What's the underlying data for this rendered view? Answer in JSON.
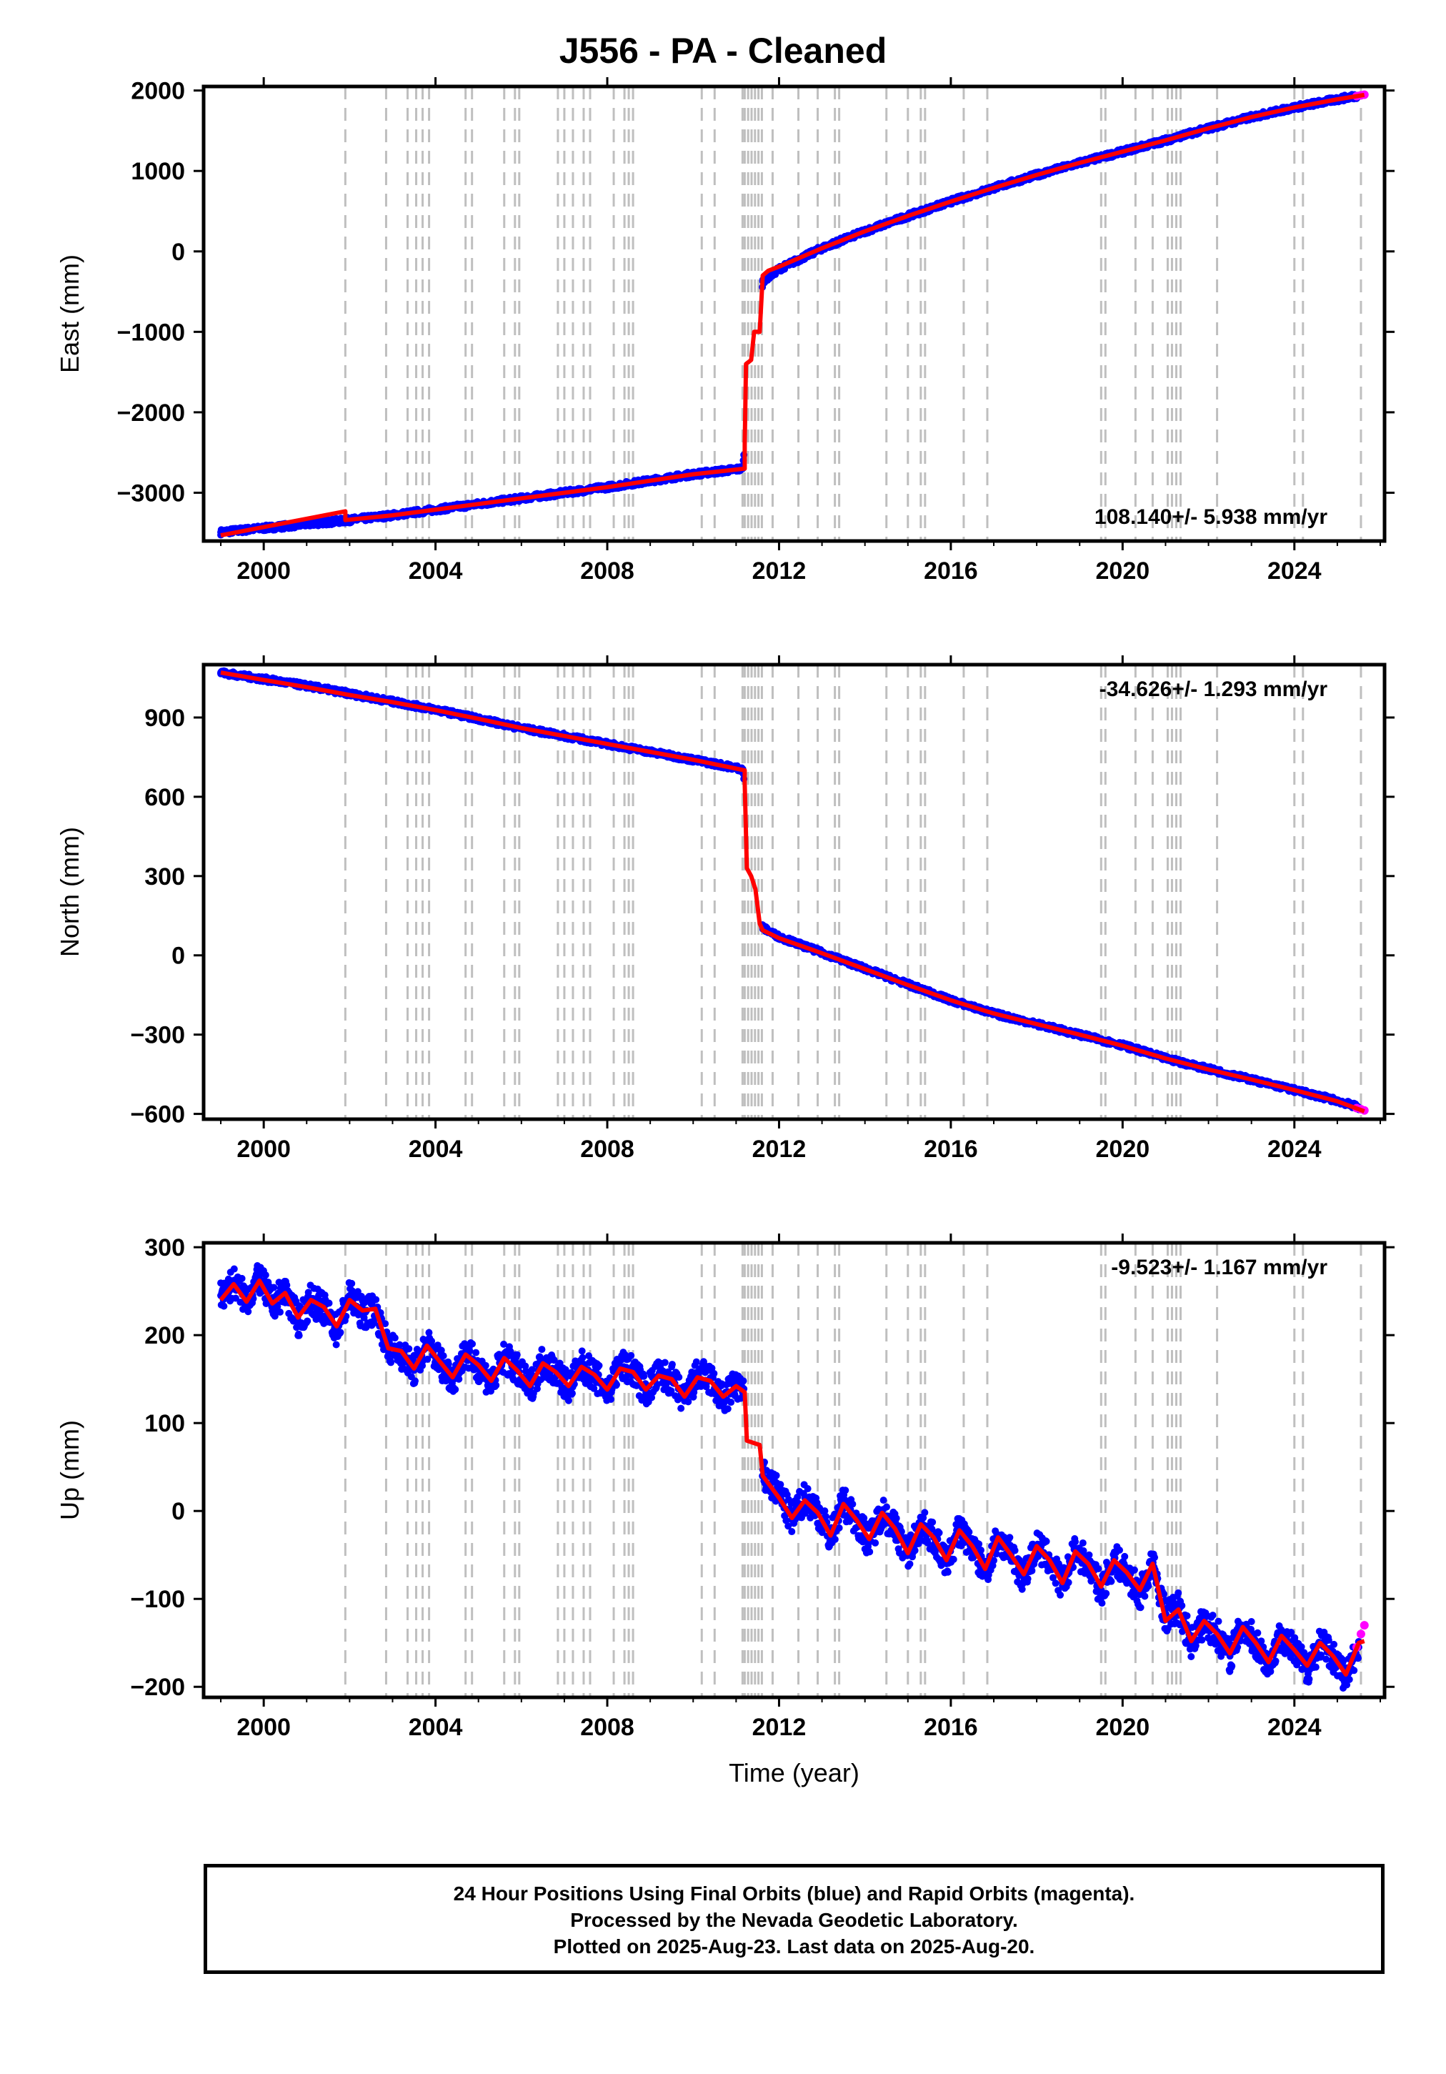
{
  "title": "J556  - PA - Cleaned",
  "caption": {
    "line1": "24 Hour Positions Using Final Orbits (blue) and Rapid Orbits (magenta).",
    "line2": "Processed by the Nevada Geodetic Laboratory.",
    "line3": "Plotted on 2025-Aug-23. Last data on 2025-Aug-20."
  },
  "colors": {
    "final_orbits": "#0000ff",
    "rapid_orbits": "#ff00ff",
    "model_fit": "#ff0000",
    "event_lines": "#bfbfbf",
    "axes": "#000000"
  },
  "chart_data": [
    {
      "type": "scatter",
      "id": "east",
      "title": "",
      "xlabel": "",
      "ylabel": "East (mm)",
      "xlim": [
        1998.6,
        2026.1
      ],
      "ylim": [
        -3600,
        2050
      ],
      "xticks": [
        2000,
        2004,
        2008,
        2012,
        2016,
        2020,
        2024
      ],
      "yticks": [
        -3000,
        -2000,
        -1000,
        0,
        1000,
        2000
      ],
      "ytick_labels": [
        "−3000",
        "−2000",
        "−1000",
        "0",
        "1000",
        "2000"
      ],
      "rate_label": "108.140+/- 5.938 mm/yr",
      "rate_label_position": "bottom-right",
      "grid": false,
      "series": [
        {
          "kind": "final_orbits",
          "x": [
            1999.0,
            2000.0,
            2001.0,
            2002.0,
            2003.0,
            2004.0,
            2005.0,
            2006.0,
            2007.0,
            2008.0,
            2009.0,
            2010.0,
            2011.15,
            2011.62,
            2012.0,
            2013.0,
            2014.0,
            2015.0,
            2016.0,
            2017.0,
            2018.0,
            2019.0,
            2020.0,
            2021.0,
            2022.0,
            2023.0,
            2024.0,
            2025.0,
            2025.5
          ],
          "y": [
            -3490,
            -3440,
            -3390,
            -3340,
            -3280,
            -3210,
            -3140,
            -3070,
            -3000,
            -2930,
            -2850,
            -2770,
            -2700,
            -370,
            -220,
            40,
            250,
            440,
            620,
            790,
            950,
            1100,
            1240,
            1380,
            1530,
            1670,
            1790,
            1890,
            1940
          ]
        },
        {
          "kind": "rapid_orbits",
          "x": [
            2025.45,
            2025.55,
            2025.63
          ],
          "y": [
            1930,
            1940,
            1948
          ]
        },
        {
          "kind": "model_fit",
          "x": [
            1999.0,
            2001.9,
            2001.9,
            2003.0,
            2004.0,
            2005.0,
            2006.0,
            2007.0,
            2008.0,
            2009.0,
            2010.0,
            2011.2,
            2011.2,
            2011.23,
            2011.35,
            2011.42,
            2011.55,
            2011.62,
            2011.75,
            2012.0,
            2013.0,
            2014.0,
            2015.0,
            2016.0,
            2017.0,
            2018.0,
            2019.0,
            2020.0,
            2021.0,
            2022.0,
            2023.0,
            2024.0,
            2025.0,
            2025.63
          ],
          "y": [
            -3530,
            -3230,
            -3340,
            -3280,
            -3210,
            -3140,
            -3070,
            -3000,
            -2930,
            -2850,
            -2770,
            -2700,
            -2400,
            -1400,
            -1350,
            -1000,
            -1000,
            -300,
            -240,
            -190,
            40,
            250,
            440,
            620,
            790,
            950,
            1100,
            1240,
            1380,
            1530,
            1670,
            1790,
            1890,
            1945
          ]
        }
      ]
    },
    {
      "type": "scatter",
      "id": "north",
      "title": "",
      "xlabel": "",
      "ylabel": "North (mm)",
      "xlim": [
        1998.6,
        2026.1
      ],
      "ylim": [
        -620,
        1100
      ],
      "xticks": [
        2000,
        2004,
        2008,
        2012,
        2016,
        2020,
        2024
      ],
      "yticks": [
        -600,
        -300,
        0,
        300,
        600,
        900
      ],
      "ytick_labels": [
        "−600",
        "−300",
        "0",
        "300",
        "600",
        "900"
      ],
      "rate_label": "-34.626+/- 1.293 mm/yr",
      "rate_label_position": "top-right",
      "grid": false,
      "series": [
        {
          "kind": "final_orbits",
          "x": [
            1999.0,
            2000.0,
            2001.0,
            2002.0,
            2003.0,
            2004.0,
            2005.0,
            2006.0,
            2007.0,
            2008.0,
            2009.0,
            2010.0,
            2011.15,
            2011.62,
            2012.0,
            2013.0,
            2014.0,
            2015.0,
            2016.0,
            2017.0,
            2018.0,
            2019.0,
            2020.0,
            2021.0,
            2022.0,
            2023.0,
            2024.0,
            2025.0,
            2025.5
          ],
          "y": [
            1070,
            1045,
            1020,
            990,
            960,
            930,
            895,
            860,
            830,
            800,
            770,
            740,
            705,
            105,
            70,
            10,
            -50,
            -110,
            -170,
            -220,
            -260,
            -300,
            -340,
            -390,
            -430,
            -470,
            -510,
            -550,
            -575
          ]
        },
        {
          "kind": "rapid_orbits",
          "x": [
            2025.45,
            2025.55,
            2025.63
          ],
          "y": [
            -578,
            -582,
            -587
          ]
        },
        {
          "kind": "model_fit",
          "x": [
            1999.0,
            2000.0,
            2001.0,
            2002.0,
            2003.0,
            2004.0,
            2005.0,
            2006.0,
            2007.0,
            2008.0,
            2009.0,
            2010.0,
            2011.2,
            2011.2,
            2011.25,
            2011.35,
            2011.45,
            2011.55,
            2011.62,
            2012.0,
            2013.0,
            2014.0,
            2015.0,
            2016.0,
            2017.0,
            2018.0,
            2019.0,
            2020.0,
            2021.0,
            2022.0,
            2023.0,
            2024.0,
            2025.0,
            2025.63
          ],
          "y": [
            1070,
            1042,
            1015,
            985,
            958,
            928,
            895,
            860,
            830,
            800,
            770,
            740,
            700,
            650,
            330,
            300,
            250,
            120,
            95,
            65,
            8,
            -52,
            -112,
            -170,
            -220,
            -260,
            -300,
            -342,
            -390,
            -432,
            -470,
            -510,
            -552,
            -590
          ]
        }
      ]
    },
    {
      "type": "scatter",
      "id": "up",
      "title": "",
      "xlabel": "Time (year)",
      "ylabel": "Up (mm)",
      "xlim": [
        1998.6,
        2026.1
      ],
      "ylim": [
        -212,
        305
      ],
      "xticks": [
        2000,
        2004,
        2008,
        2012,
        2016,
        2020,
        2024
      ],
      "yticks": [
        -200,
        -100,
        0,
        100,
        200,
        300
      ],
      "ytick_labels": [
        "−200",
        "−100",
        "0",
        "100",
        "200",
        "300"
      ],
      "rate_label": "-9.523+/- 1.167 mm/yr",
      "rate_label_position": "top-right",
      "grid": false,
      "series": [
        {
          "kind": "final_orbits",
          "x": [
            1999.0,
            1999.3,
            1999.6,
            1999.9,
            2000.2,
            2000.5,
            2000.8,
            2001.1,
            2001.4,
            2001.7,
            2002.0,
            2002.3,
            2002.6,
            2002.9,
            2003.2,
            2003.5,
            2003.8,
            2004.1,
            2004.4,
            2004.7,
            2005.0,
            2005.3,
            2005.6,
            2005.9,
            2006.2,
            2006.5,
            2006.8,
            2007.1,
            2007.4,
            2007.7,
            2008.0,
            2008.3,
            2008.6,
            2008.9,
            2009.2,
            2009.5,
            2009.8,
            2010.1,
            2010.4,
            2010.7,
            2011.0,
            2011.15,
            2011.62,
            2012.0,
            2012.3,
            2012.6,
            2012.9,
            2013.2,
            2013.5,
            2013.8,
            2014.1,
            2014.4,
            2014.7,
            2015.0,
            2015.3,
            2015.6,
            2015.9,
            2016.2,
            2016.5,
            2016.8,
            2017.1,
            2017.4,
            2017.7,
            2018.0,
            2018.3,
            2018.6,
            2018.9,
            2019.2,
            2019.5,
            2019.8,
            2020.1,
            2020.4,
            2020.7,
            2021.0,
            2021.3,
            2021.6,
            2021.9,
            2022.2,
            2022.5,
            2022.8,
            2023.1,
            2023.4,
            2023.7,
            2024.0,
            2024.3,
            2024.6,
            2024.9,
            2025.2,
            2025.5
          ],
          "y": [
            245,
            260,
            240,
            265,
            235,
            250,
            215,
            240,
            230,
            205,
            245,
            225,
            230,
            185,
            180,
            160,
            190,
            170,
            150,
            180,
            165,
            145,
            175,
            160,
            140,
            170,
            160,
            140,
            165,
            155,
            135,
            165,
            160,
            135,
            155,
            150,
            125,
            155,
            150,
            125,
            145,
            135,
            40,
            20,
            -10,
            15,
            0,
            -30,
            10,
            -10,
            -35,
            0,
            -20,
            -50,
            -15,
            -30,
            -60,
            -20,
            -40,
            -70,
            -30,
            -50,
            -75,
            -40,
            -55,
            -85,
            -45,
            -60,
            -90,
            -55,
            -70,
            -95,
            -60,
            -120,
            -110,
            -150,
            -125,
            -140,
            -165,
            -130,
            -150,
            -175,
            -140,
            -160,
            -180,
            -150,
            -165,
            -190,
            -155
          ]
        },
        {
          "kind": "rapid_orbits",
          "x": [
            2025.45,
            2025.55,
            2025.63
          ],
          "y": [
            -155,
            -140,
            -130
          ]
        },
        {
          "kind": "model_fit",
          "x": [
            1999.0,
            1999.3,
            1999.6,
            1999.9,
            2000.2,
            2000.5,
            2000.8,
            2001.1,
            2001.4,
            2001.7,
            2002.0,
            2002.3,
            2002.6,
            2002.9,
            2003.2,
            2003.5,
            2003.8,
            2004.1,
            2004.4,
            2004.7,
            2005.0,
            2005.3,
            2005.6,
            2005.9,
            2006.2,
            2006.5,
            2006.8,
            2007.1,
            2007.4,
            2007.7,
            2008.0,
            2008.3,
            2008.6,
            2008.9,
            2009.2,
            2009.5,
            2009.8,
            2010.1,
            2010.4,
            2010.7,
            2011.0,
            2011.2,
            2011.25,
            2011.55,
            2011.62,
            2012.0,
            2012.3,
            2012.6,
            2012.9,
            2013.2,
            2013.5,
            2013.8,
            2014.1,
            2014.4,
            2014.7,
            2015.0,
            2015.3,
            2015.6,
            2015.9,
            2016.2,
            2016.5,
            2016.8,
            2017.1,
            2017.4,
            2017.7,
            2018.0,
            2018.3,
            2018.6,
            2018.9,
            2019.2,
            2019.5,
            2019.8,
            2020.1,
            2020.4,
            2020.7,
            2021.0,
            2021.3,
            2021.6,
            2021.9,
            2022.2,
            2022.5,
            2022.8,
            2023.1,
            2023.4,
            2023.7,
            2024.0,
            2024.3,
            2024.6,
            2024.9,
            2025.2,
            2025.5,
            2025.63
          ],
          "y": [
            240,
            258,
            238,
            262,
            236,
            248,
            220,
            240,
            232,
            210,
            240,
            228,
            230,
            185,
            182,
            162,
            188,
            170,
            152,
            178,
            166,
            148,
            174,
            160,
            142,
            168,
            158,
            142,
            164,
            155,
            138,
            162,
            158,
            138,
            154,
            150,
            130,
            152,
            148,
            130,
            142,
            135,
            80,
            75,
            40,
            15,
            -8,
            12,
            -2,
            -28,
            8,
            -10,
            -32,
            -2,
            -20,
            -48,
            -15,
            -30,
            -56,
            -22,
            -40,
            -66,
            -30,
            -50,
            -72,
            -40,
            -56,
            -82,
            -46,
            -60,
            -86,
            -56,
            -70,
            -90,
            -60,
            -125,
            -112,
            -148,
            -125,
            -140,
            -162,
            -132,
            -150,
            -172,
            -142,
            -158,
            -176,
            -150,
            -165,
            -186,
            -150,
            -148
          ]
        }
      ]
    }
  ],
  "event_lines_x": [
    2001.9,
    2002.85,
    2003.35,
    2003.55,
    2003.7,
    2003.85,
    2004.7,
    2004.85,
    2005.6,
    2005.85,
    2005.95,
    2006.85,
    2007.0,
    2007.2,
    2007.45,
    2007.6,
    2008.15,
    2008.4,
    2008.5,
    2008.6,
    2010.2,
    2010.5,
    2011.15,
    2011.2,
    2011.28,
    2011.36,
    2011.44,
    2011.52,
    2011.6,
    2011.85,
    2012.45,
    2012.9,
    2013.3,
    2013.4,
    2014.5,
    2015.0,
    2015.3,
    2015.4,
    2016.3,
    2016.85,
    2019.5,
    2019.6,
    2020.3,
    2020.7,
    2021.05,
    2021.15,
    2021.25,
    2021.35,
    2022.2,
    2024.0,
    2024.2,
    2025.55
  ]
}
